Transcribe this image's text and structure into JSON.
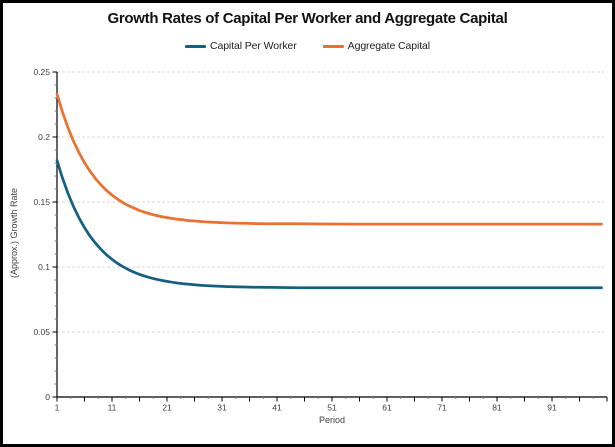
{
  "frame": {
    "border_color": "#000000",
    "background": "#ffffff"
  },
  "chart": {
    "title": "Growth Rates of Capital Per Worker and Aggregate Capital",
    "x_axis_title": "Period",
    "y_axis_title": "(Approx.) Growth Rate"
  },
  "legend": {
    "items": [
      {
        "label": "Capital Per Worker",
        "color": "#156082"
      },
      {
        "label": "Aggregate Capital",
        "color": "#E97132"
      }
    ]
  },
  "colors": {
    "gridline": "#D9D9D9",
    "axis_line": "#000000",
    "tick_label": "#404040",
    "minor_tick": "#808080"
  },
  "chart_data": {
    "type": "line",
    "title": "Growth Rates of Capital Per Worker and Aggregate Capital",
    "xlabel": "Period",
    "ylabel": "(Approx.) Growth Rate",
    "xlim": [
      1,
      101
    ],
    "ylim": [
      0,
      0.25
    ],
    "x_tick_values": [
      1,
      11,
      21,
      31,
      41,
      51,
      61,
      71,
      81,
      91
    ],
    "x_tick_labels": [
      "1",
      "11",
      "21",
      "31",
      "41",
      "51",
      "61",
      "71",
      "81",
      "91"
    ],
    "x_major_unit": 5,
    "x_minor_unit": 2.5,
    "y_tick_values": [
      0,
      0.05,
      0.1,
      0.15,
      0.2,
      0.25
    ],
    "y_tick_labels": [
      "0",
      "0.05",
      "0.1",
      "0.15",
      "0.2",
      "0.25"
    ],
    "y_minor_unit": 0.01,
    "gridlines": "horizontal-dashed",
    "legend_position": "top",
    "x": [
      1,
      2,
      3,
      4,
      5,
      6,
      7,
      8,
      9,
      10,
      11,
      12,
      13,
      14,
      15,
      16,
      17,
      18,
      19,
      20,
      21,
      22,
      23,
      24,
      25,
      26,
      27,
      28,
      29,
      30,
      31,
      32,
      33,
      34,
      35,
      36,
      37,
      38,
      39,
      40,
      45,
      50,
      55,
      60,
      65,
      70,
      75,
      80,
      85,
      90,
      95,
      100
    ],
    "series": [
      {
        "name": "Capital Per Worker",
        "color": "#156082",
        "values": [
          0.182,
          0.1684,
          0.1566,
          0.1465,
          0.1378,
          0.1303,
          0.1238,
          0.1183,
          0.1135,
          0.1094,
          0.1059,
          0.1028,
          0.1002,
          0.0979,
          0.096,
          0.0943,
          0.0929,
          0.0917,
          0.0906,
          0.0897,
          0.0889,
          0.0882,
          0.0876,
          0.0871,
          0.0867,
          0.0863,
          0.086,
          0.0857,
          0.0855,
          0.0853,
          0.0851,
          0.0849,
          0.0848,
          0.0847,
          0.0846,
          0.0845,
          0.0844,
          0.0844,
          0.0843,
          0.0843,
          0.0841,
          0.084,
          0.084,
          0.084,
          0.084,
          0.084,
          0.084,
          0.084,
          0.084,
          0.084,
          0.084,
          0.084
        ]
      },
      {
        "name": "Aggregate Capital",
        "color": "#E97132",
        "values": [
          0.233,
          0.2191,
          0.2071,
          0.1968,
          0.1879,
          0.1802,
          0.1737,
          0.168,
          0.1631,
          0.1589,
          0.1553,
          0.1522,
          0.1495,
          0.1472,
          0.1453,
          0.1435,
          0.1421,
          0.1408,
          0.1397,
          0.1388,
          0.138,
          0.1373,
          0.1367,
          0.1362,
          0.1357,
          0.1354,
          0.135,
          0.1347,
          0.1345,
          0.1343,
          0.1341,
          0.1339,
          0.1338,
          0.1337,
          0.1336,
          0.1335,
          0.1334,
          0.1334,
          0.1333,
          0.1333,
          0.1332,
          0.1331,
          0.133,
          0.133,
          0.133,
          0.133,
          0.133,
          0.133,
          0.133,
          0.133,
          0.133,
          0.133
        ]
      }
    ]
  }
}
